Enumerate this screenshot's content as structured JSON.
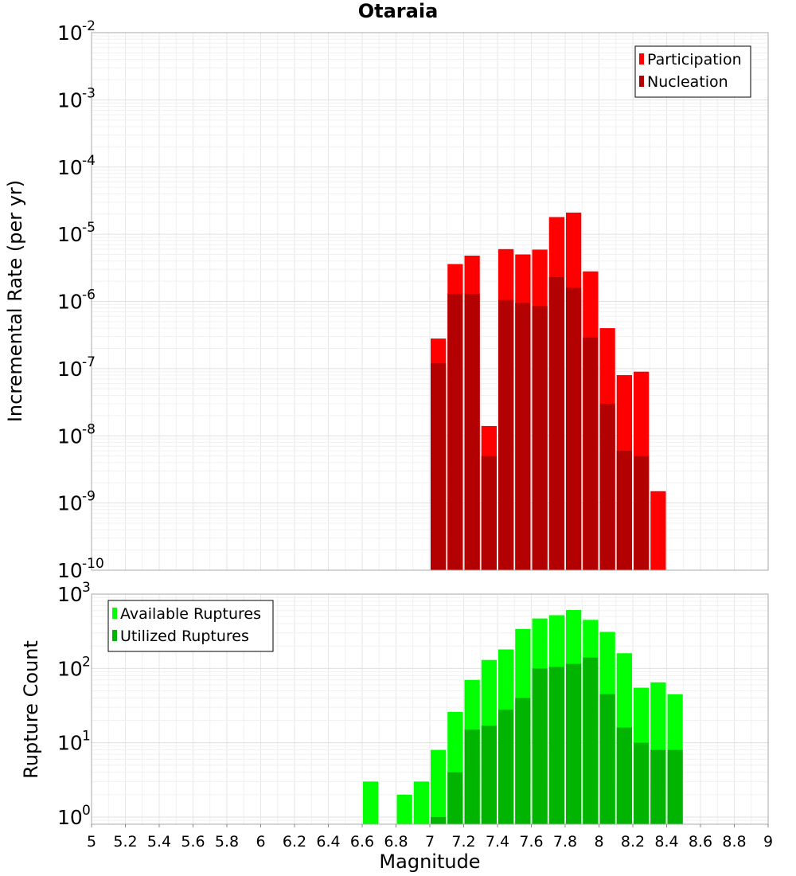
{
  "chart_data": [
    {
      "type": "bar",
      "title": "Otaraia",
      "xlabel": "",
      "ylabel": "Incremental Rate (per yr)",
      "yscale": "log",
      "ylim": [
        1e-10,
        0.01
      ],
      "xlim": [
        5,
        9
      ],
      "y_tick_exponents": [
        "-2",
        "-3",
        "-4",
        "-5",
        "-6",
        "-7",
        "-8",
        "-9",
        "-10"
      ],
      "legend": {
        "placement": "top-right",
        "entries": [
          "Participation",
          "Nucleation"
        ]
      },
      "grid": true,
      "bin_width": 0.1,
      "series": [
        {
          "name": "Participation",
          "color": "#ff0000",
          "x": [
            7.05,
            7.15,
            7.25,
            7.35,
            7.45,
            7.55,
            7.65,
            7.75,
            7.85,
            7.95,
            8.05,
            8.15,
            8.25,
            8.35
          ],
          "values": [
            2.8e-07,
            3.6e-06,
            4.8e-06,
            1.4e-08,
            6e-06,
            5e-06,
            5.9e-06,
            1.8e-05,
            2.1e-05,
            2.8e-06,
            4e-07,
            8e-08,
            9e-08,
            1.5e-09
          ]
        },
        {
          "name": "Nucleation",
          "color": "#b30000",
          "x": [
            7.05,
            7.15,
            7.25,
            7.35,
            7.45,
            7.55,
            7.65,
            7.75,
            7.85,
            7.95,
            8.05,
            8.15,
            8.25
          ],
          "values": [
            1.2e-07,
            1.3e-06,
            1.3e-06,
            5e-09,
            1.05e-06,
            9.5e-07,
            8.5e-07,
            2.3e-06,
            1.6e-06,
            2.9e-07,
            3e-08,
            6e-09,
            5e-09
          ]
        }
      ]
    },
    {
      "type": "bar",
      "xlabel": "Magnitude",
      "ylabel": "Rupture Count",
      "yscale": "log",
      "ylim": [
        0.8,
        1000
      ],
      "xlim": [
        5,
        9
      ],
      "x_ticks": [
        "5",
        "5.2",
        "5.4",
        "5.6",
        "5.8",
        "6",
        "6.2",
        "6.4",
        "6.6",
        "6.8",
        "7",
        "7.2",
        "7.4",
        "7.6",
        "7.8",
        "8",
        "8.2",
        "8.4",
        "8.6",
        "8.8",
        "9"
      ],
      "y_tick_exponents": [
        "3",
        "2",
        "1",
        "0"
      ],
      "legend": {
        "placement": "top-left",
        "entries": [
          "Available Ruptures",
          "Utilized Ruptures"
        ]
      },
      "grid": true,
      "bin_width": 0.1,
      "series": [
        {
          "name": "Available Ruptures",
          "color": "#00ff00",
          "x": [
            6.65,
            6.85,
            6.95,
            7.05,
            7.15,
            7.25,
            7.35,
            7.45,
            7.55,
            7.65,
            7.75,
            7.85,
            7.95,
            8.05,
            8.15,
            8.25,
            8.35,
            8.45
          ],
          "values": [
            3,
            2,
            3,
            8,
            26,
            70,
            130,
            180,
            340,
            470,
            520,
            610,
            450,
            310,
            160,
            55,
            65,
            45
          ]
        },
        {
          "name": "Utilized Ruptures",
          "color": "#00b400",
          "x": [
            7.05,
            7.15,
            7.25,
            7.35,
            7.45,
            7.55,
            7.65,
            7.75,
            7.85,
            7.95,
            8.05,
            8.15,
            8.25,
            8.35,
            8.45
          ],
          "values": [
            1,
            4,
            15,
            17,
            28,
            40,
            100,
            105,
            115,
            140,
            45,
            16,
            10,
            8,
            8
          ]
        }
      ]
    }
  ]
}
